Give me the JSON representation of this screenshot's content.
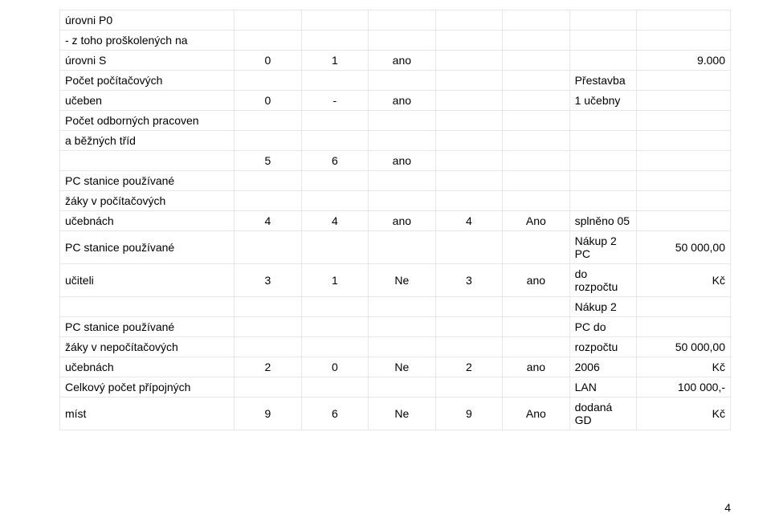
{
  "table": {
    "border_color": "#e6e6e6",
    "font_size_pt": 11,
    "rows": {
      "r1_c1": "úrovni P0",
      "r2_c1": "- z toho proškolených na",
      "r3_c1": "úrovni S",
      "r3_c2": "0",
      "r3_c3": "1",
      "r3_c4": "ano",
      "r3_c6": "9.000",
      "r4_c1": "Počet počítačových",
      "r4_c5": "Přestavba",
      "r5_c1": "učeben",
      "r5_c2": "0",
      "r5_c3": "-",
      "r5_c4": "ano",
      "r5_c5": "1 učebny",
      "r6_c1": "Počet odborných pracoven",
      "r7_c1": "a běžných tříd",
      "r8_c2": "5",
      "r8_c3": "6",
      "r8_c4": "ano",
      "r9_c1": "PC stanice používané",
      "r10_c1": "žáky v počítačových",
      "r11_c1": "učebnách",
      "r11_c2": "4",
      "r11_c3": "4",
      "r11_c4": "ano",
      "r11_d": "4",
      "r11_e": "Ano",
      "r11_f": "splněno 05",
      "r12_c1": "PC stanice používané",
      "r12_f": "Nákup 2 PC",
      "r12_g": "50 000,00",
      "r13_c1": "učiteli",
      "r13_c2": "3",
      "r13_c3": "1",
      "r13_c4": "Ne",
      "r13_d": "3",
      "r13_e": "ano",
      "r13_f": "do rozpočtu",
      "r13_g": "Kč",
      "r14_f": "Nákup 2",
      "r15_c1": "PC stanice používané",
      "r15_f": "PC do",
      "r16_c1": "žáky v nepočítačových",
      "r16_f": "rozpočtu",
      "r16_g": "50 000,00",
      "r17_c1": "učebnách",
      "r17_c2": "2",
      "r17_c3": "0",
      "r17_c4": "Ne",
      "r17_d": "2",
      "r17_e": "ano",
      "r17_f": "2006",
      "r17_g": "Kč",
      "r18_c1": "Celkový počet přípojných",
      "r18_f": "LAN",
      "r18_g": "100 000,-",
      "r19_c1": "míst",
      "r19_c2": "9",
      "r19_c3": "6",
      "r19_c4": "Ne",
      "r19_d": "9",
      "r19_e": "Ano",
      "r19_f": "dodaná GD",
      "r19_g": "Kč"
    }
  },
  "page_number": "4"
}
